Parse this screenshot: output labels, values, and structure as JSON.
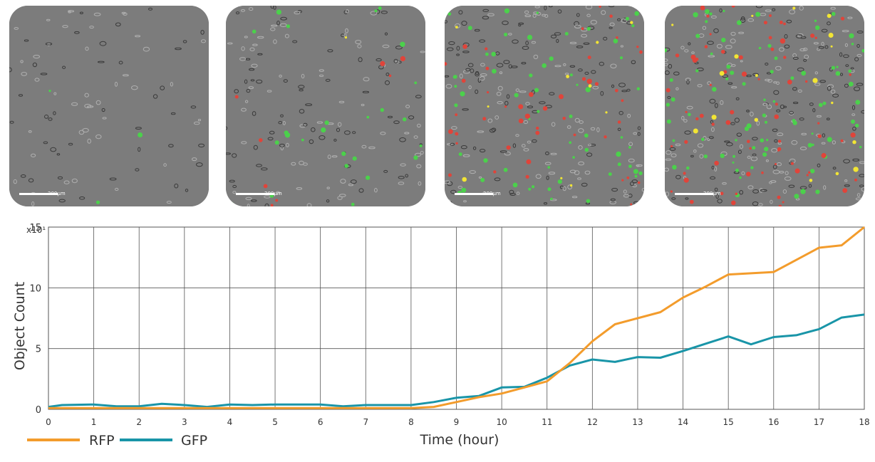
{
  "micrographs": [
    {
      "scale_label": "200μm"
    },
    {
      "scale_label": "200μm"
    },
    {
      "scale_label": "200μm"
    },
    {
      "scale_label": "200μm"
    }
  ],
  "colors": {
    "rfp": "#f39c2c",
    "gfp": "#1995a8",
    "grid": "#555555",
    "panel": "#7c7c7c"
  },
  "chart_data": {
    "type": "line",
    "xlabel": "Time (hour)",
    "ylabel": "Object Count",
    "multiplier_label": "x10¹",
    "xlim": [
      0,
      18
    ],
    "ylim": [
      0,
      15
    ],
    "x_ticks": [
      0,
      1,
      2,
      3,
      4,
      5,
      6,
      7,
      8,
      9,
      10,
      11,
      12,
      13,
      14,
      15,
      16,
      17,
      18
    ],
    "y_ticks": [
      0,
      5,
      10,
      15
    ],
    "grid": true,
    "legend_placement": "bottom-left",
    "series": [
      {
        "name": "RFP",
        "color": "#f39c2c",
        "x": [
          0,
          0.5,
          1,
          1.5,
          2,
          2.5,
          3,
          3.5,
          4,
          4.5,
          5,
          5.5,
          6,
          6.5,
          7,
          7.5,
          8,
          8.5,
          9,
          9.5,
          10,
          10.5,
          11,
          11.5,
          12,
          12.5,
          13,
          13.5,
          14,
          14.5,
          15,
          15.5,
          16,
          16.5,
          17,
          17.5,
          18
        ],
        "values": [
          0.1,
          0.1,
          0.1,
          0.1,
          0.1,
          0.1,
          0.1,
          0.1,
          0.1,
          0.1,
          0.1,
          0.1,
          0.1,
          0.1,
          0.1,
          0.1,
          0.1,
          0.2,
          0.6,
          1.0,
          1.3,
          1.8,
          2.3,
          3.8,
          5.6,
          7.0,
          7.5,
          8.0,
          9.2,
          10.1,
          11.1,
          11.2,
          11.3,
          12.3,
          13.3,
          13.5,
          15.0
        ]
      },
      {
        "name": "GFP",
        "color": "#1995a8",
        "x": [
          0,
          0.3,
          1,
          1.5,
          2,
          2.5,
          3,
          3.5,
          4,
          4.5,
          5,
          5.5,
          6,
          6.5,
          7,
          7.5,
          8,
          8.5,
          9,
          9.5,
          10,
          10.5,
          11,
          11.5,
          12,
          12.5,
          13,
          13.5,
          14,
          14.5,
          15,
          15.5,
          16,
          16.5,
          17,
          17.5,
          18
        ],
        "values": [
          0.2,
          0.35,
          0.4,
          0.25,
          0.25,
          0.45,
          0.35,
          0.2,
          0.4,
          0.35,
          0.4,
          0.4,
          0.4,
          0.25,
          0.35,
          0.35,
          0.35,
          0.6,
          0.95,
          1.1,
          1.8,
          1.85,
          2.6,
          3.6,
          4.1,
          3.9,
          4.3,
          4.25,
          4.8,
          5.4,
          6.0,
          5.35,
          5.95,
          6.1,
          6.6,
          7.55,
          7.8
        ]
      }
    ]
  }
}
